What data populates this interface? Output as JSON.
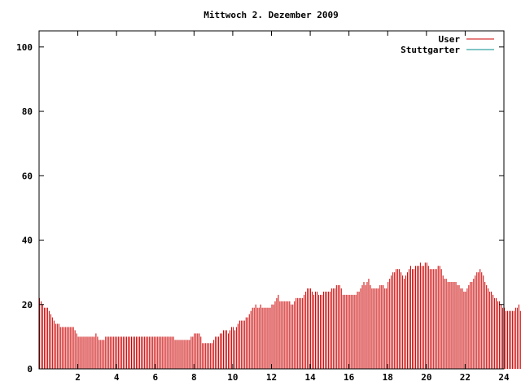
{
  "chart_data": {
    "type": "bar",
    "title": "Mittwoch 2. Dezember 2009",
    "xlabel": "",
    "ylabel": "",
    "xlim": [
      0,
      24
    ],
    "ylim": [
      0,
      105
    ],
    "x_ticks": [
      "2",
      "4",
      "6",
      "8",
      "10",
      "12",
      "14",
      "16",
      "18",
      "20",
      "22",
      "24"
    ],
    "x_tick_values": [
      2,
      4,
      6,
      8,
      10,
      12,
      14,
      16,
      18,
      20,
      22,
      24
    ],
    "y_ticks": [
      "0",
      "20",
      "40",
      "60",
      "80",
      "100"
    ],
    "y_tick_values": [
      0,
      20,
      40,
      60,
      80,
      100
    ],
    "grid": false,
    "legend_position": "top-right",
    "series": [
      {
        "name": "User",
        "color": "#cc0000",
        "style": "impulses",
        "x_step_minutes": 5,
        "values": [
          22,
          21,
          20,
          19,
          19,
          19,
          18,
          17,
          16,
          15,
          14,
          14,
          14,
          13,
          13,
          13,
          13,
          13,
          13,
          13,
          13,
          13,
          12,
          11,
          10,
          10,
          10,
          10,
          10,
          10,
          10,
          10,
          10,
          10,
          10,
          11,
          10,
          9,
          9,
          9,
          9,
          10,
          10,
          10,
          10,
          10,
          10,
          10,
          10,
          10,
          10,
          10,
          10,
          10,
          10,
          10,
          10,
          10,
          10,
          10,
          10,
          10,
          10,
          10,
          10,
          10,
          10,
          10,
          10,
          10,
          10,
          10,
          10,
          10,
          10,
          10,
          10,
          10,
          10,
          10,
          10,
          10,
          10,
          10,
          9,
          9,
          9,
          9,
          9,
          9,
          9,
          9,
          9,
          9,
          10,
          10,
          11,
          11,
          11,
          11,
          10,
          8,
          8,
          8,
          8,
          8,
          8,
          8,
          9,
          10,
          10,
          10,
          11,
          11,
          12,
          12,
          12,
          11,
          12,
          13,
          13,
          12,
          13,
          14,
          15,
          15,
          15,
          15,
          16,
          16,
          17,
          18,
          19,
          19,
          20,
          19,
          19,
          20,
          19,
          19,
          19,
          19,
          19,
          19,
          20,
          20,
          21,
          22,
          23,
          21,
          21,
          21,
          21,
          21,
          21,
          21,
          20,
          20,
          21,
          22,
          22,
          22,
          22,
          22,
          23,
          24,
          25,
          25,
          25,
          24,
          23,
          24,
          24,
          23,
          23,
          23,
          24,
          24,
          24,
          24,
          24,
          25,
          25,
          25,
          26,
          26,
          26,
          25,
          23,
          23,
          23,
          23,
          23,
          23,
          23,
          23,
          23,
          24,
          24,
          25,
          26,
          27,
          26,
          27,
          28,
          26,
          25,
          25,
          25,
          25,
          25,
          26,
          26,
          26,
          25,
          25,
          27,
          28,
          29,
          30,
          30,
          31,
          31,
          31,
          30,
          29,
          28,
          29,
          30,
          31,
          32,
          31,
          31,
          32,
          32,
          32,
          33,
          32,
          32,
          33,
          33,
          32,
          31,
          31,
          31,
          31,
          31,
          32,
          32,
          31,
          29,
          28,
          28,
          27,
          27,
          27,
          27,
          27,
          27,
          26,
          26,
          25,
          25,
          24,
          24,
          25,
          26,
          27,
          27,
          28,
          29,
          30,
          30,
          31,
          30,
          29,
          27,
          26,
          25,
          24,
          24,
          23,
          22,
          22,
          21,
          21,
          20,
          19,
          19,
          18,
          18,
          18,
          18,
          18,
          18,
          19,
          19,
          20,
          18,
          18,
          18,
          18,
          18
        ]
      },
      {
        "name": "Stuttgarter",
        "color": "#008b8b",
        "style": "impulses",
        "values": []
      }
    ]
  }
}
